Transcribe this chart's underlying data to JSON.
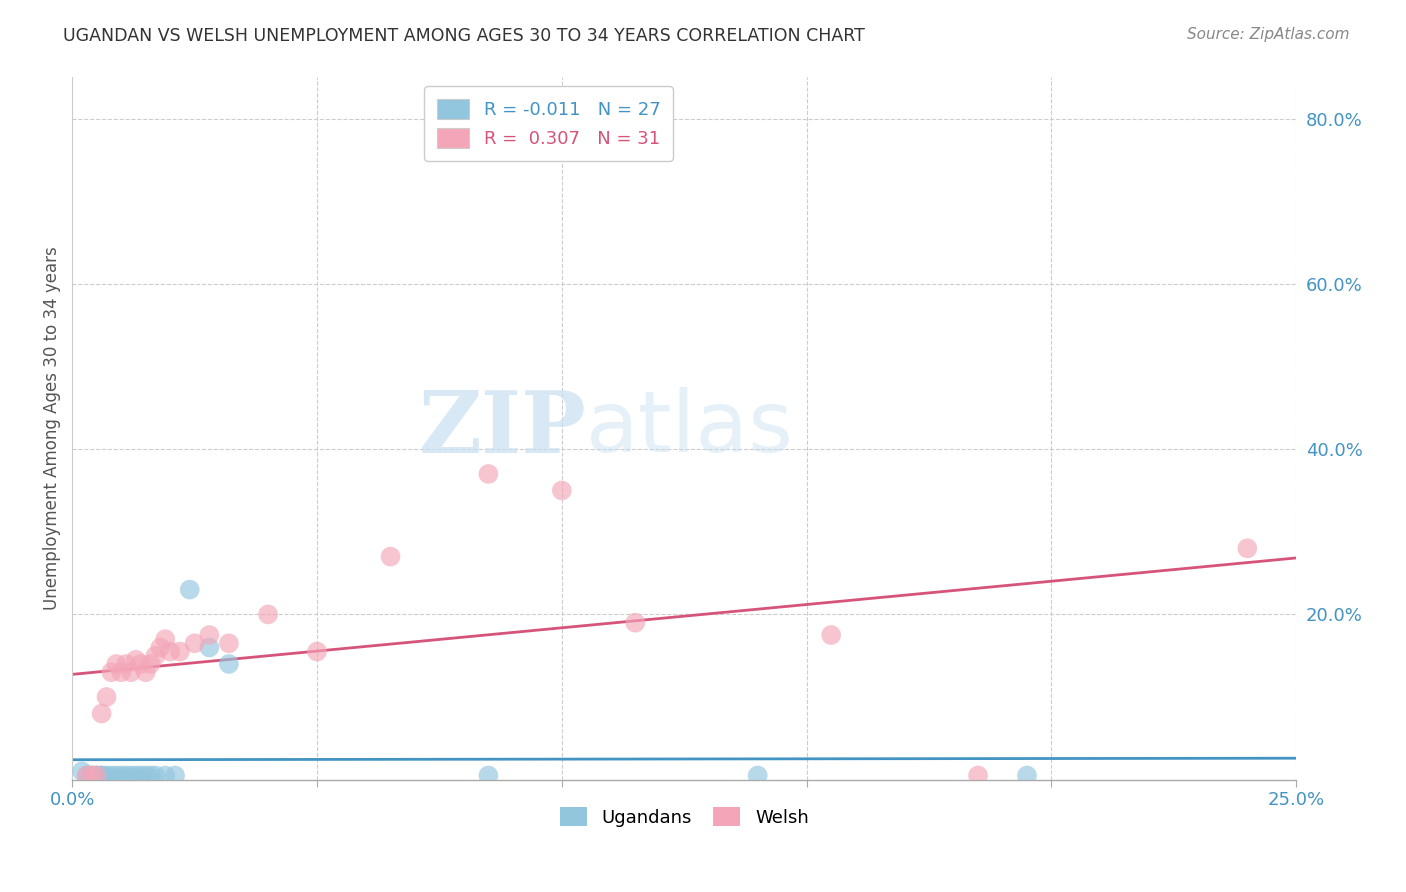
{
  "title": "UGANDAN VS WELSH UNEMPLOYMENT AMONG AGES 30 TO 34 YEARS CORRELATION CHART",
  "source": "Source: ZipAtlas.com",
  "xlim": [
    0.0,
    0.25
  ],
  "ylim": [
    0.0,
    0.85
  ],
  "ylabel": "Unemployment Among Ages 30 to 34 years",
  "legend_ugandan": "R = -0.011   N = 27",
  "legend_welsh": "R =  0.307   N = 31",
  "ugandan_color": "#92c5de",
  "welsh_color": "#f4a6b8",
  "ugandan_line_color": "#4393c3",
  "welsh_line_color": "#d6537a",
  "watermark_zip": "ZIP",
  "watermark_atlas": "atlas",
  "ugandan_x": [
    0.002,
    0.003,
    0.004,
    0.004,
    0.005,
    0.005,
    0.006,
    0.006,
    0.007,
    0.008,
    0.009,
    0.01,
    0.011,
    0.012,
    0.013,
    0.014,
    0.015,
    0.016,
    0.017,
    0.019,
    0.021,
    0.024,
    0.028,
    0.032,
    0.085,
    0.14,
    0.195
  ],
  "ugandan_y": [
    0.01,
    0.005,
    0.005,
    0.005,
    0.005,
    0.005,
    0.005,
    0.005,
    0.005,
    0.005,
    0.005,
    0.005,
    0.005,
    0.005,
    0.005,
    0.005,
    0.005,
    0.005,
    0.005,
    0.005,
    0.005,
    0.23,
    0.16,
    0.14,
    0.005,
    0.005,
    0.005
  ],
  "welsh_x": [
    0.003,
    0.004,
    0.005,
    0.006,
    0.007,
    0.008,
    0.009,
    0.01,
    0.011,
    0.012,
    0.013,
    0.014,
    0.015,
    0.016,
    0.017,
    0.018,
    0.019,
    0.02,
    0.022,
    0.025,
    0.028,
    0.032,
    0.04,
    0.05,
    0.065,
    0.085,
    0.1,
    0.115,
    0.155,
    0.185,
    0.24
  ],
  "welsh_y": [
    0.005,
    0.005,
    0.005,
    0.08,
    0.1,
    0.13,
    0.14,
    0.13,
    0.14,
    0.13,
    0.145,
    0.14,
    0.13,
    0.14,
    0.15,
    0.16,
    0.17,
    0.155,
    0.155,
    0.165,
    0.175,
    0.165,
    0.2,
    0.155,
    0.27,
    0.37,
    0.35,
    0.19,
    0.175,
    0.005,
    0.28
  ]
}
